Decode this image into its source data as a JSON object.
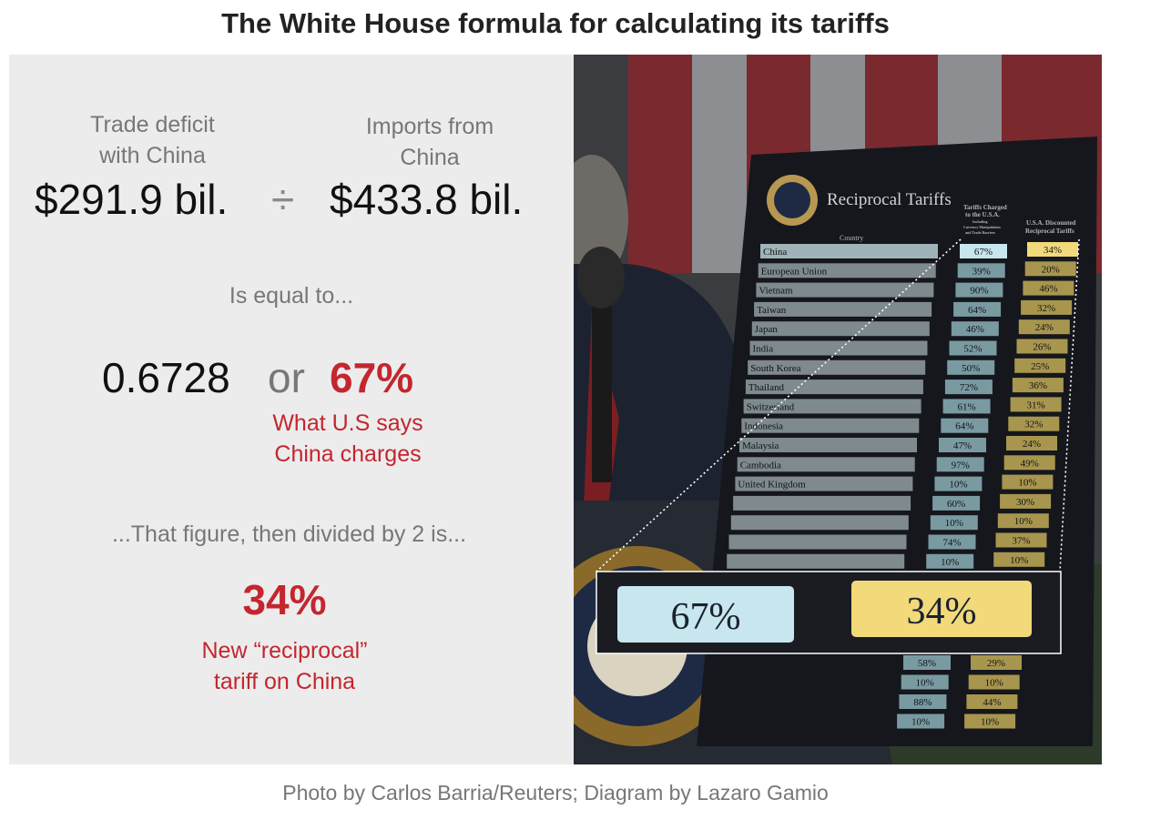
{
  "title": "The White House formula for calculating its tariffs",
  "formula": {
    "numerator_label_line1": "Trade deficit",
    "numerator_label_line2": "with China",
    "numerator_value": "$291.9 bil.",
    "operator": "÷",
    "denominator_label_line1": "Imports from",
    "denominator_label_line2": "China",
    "denominator_value": "$433.8 bil.",
    "equals_label": "Is equal to...",
    "ratio": "0.6728",
    "or": "or",
    "percent": "67%",
    "percent_note_line1": "What U.S says",
    "percent_note_line2": "China charges",
    "halved_label": "...That figure, then divided by 2 is...",
    "halved_value": "34%",
    "halved_note_line1": "New “reciprocal”",
    "halved_note_line2": "tariff on China"
  },
  "board": {
    "heading": "Reciprocal Tariffs",
    "col_country": "Country",
    "col_charged_line1": "Tariffs Charged",
    "col_charged_line2": "to the U.S.A.",
    "col_charged_line3": "Including",
    "col_charged_line4": "Currency Manipulation",
    "col_charged_line5": "and Trade Barriers",
    "col_discount_line1": "U.S.A. Discounted",
    "col_discount_line2": "Reciprocal Tariffs",
    "rows": [
      {
        "country": "China",
        "charged": "67%",
        "discounted": "34%"
      },
      {
        "country": "European Union",
        "charged": "39%",
        "discounted": "20%"
      },
      {
        "country": "Vietnam",
        "charged": "90%",
        "discounted": "46%"
      },
      {
        "country": "Taiwan",
        "charged": "64%",
        "discounted": "32%"
      },
      {
        "country": "Japan",
        "charged": "46%",
        "discounted": "24%"
      },
      {
        "country": "India",
        "charged": "52%",
        "discounted": "26%"
      },
      {
        "country": "South Korea",
        "charged": "50%",
        "discounted": "25%"
      },
      {
        "country": "Thailand",
        "charged": "72%",
        "discounted": "36%"
      },
      {
        "country": "Switzerland",
        "charged": "61%",
        "discounted": "31%"
      },
      {
        "country": "Indonesia",
        "charged": "64%",
        "discounted": "32%"
      },
      {
        "country": "Malaysia",
        "charged": "47%",
        "discounted": "24%"
      },
      {
        "country": "Cambodia",
        "charged": "97%",
        "discounted": "49%"
      },
      {
        "country": "United Kingdom",
        "charged": "10%",
        "discounted": "10%"
      },
      {
        "country": "",
        "charged": "60%",
        "discounted": "30%"
      },
      {
        "country": "",
        "charged": "10%",
        "discounted": "10%"
      },
      {
        "country": "",
        "charged": "74%",
        "discounted": "37%"
      },
      {
        "country": "",
        "charged": "10%",
        "discounted": "10%"
      }
    ],
    "lower_rows": [
      {
        "charged": "58%",
        "discounted": "29%"
      },
      {
        "charged": "10%",
        "discounted": "10%"
      },
      {
        "charged": "88%",
        "discounted": "44%"
      },
      {
        "charged": "10%",
        "discounted": "10%"
      }
    ],
    "zoom_charged": "67%",
    "zoom_discounted": "34%"
  },
  "credit": "Photo by Carlos Barria/Reuters; Diagram by Lazaro Gamio",
  "colors": {
    "red": "#c4262e",
    "panel_grey": "#ececec",
    "charged_cell": "#c8e6ee",
    "discounted_cell": "#f2d97a"
  }
}
